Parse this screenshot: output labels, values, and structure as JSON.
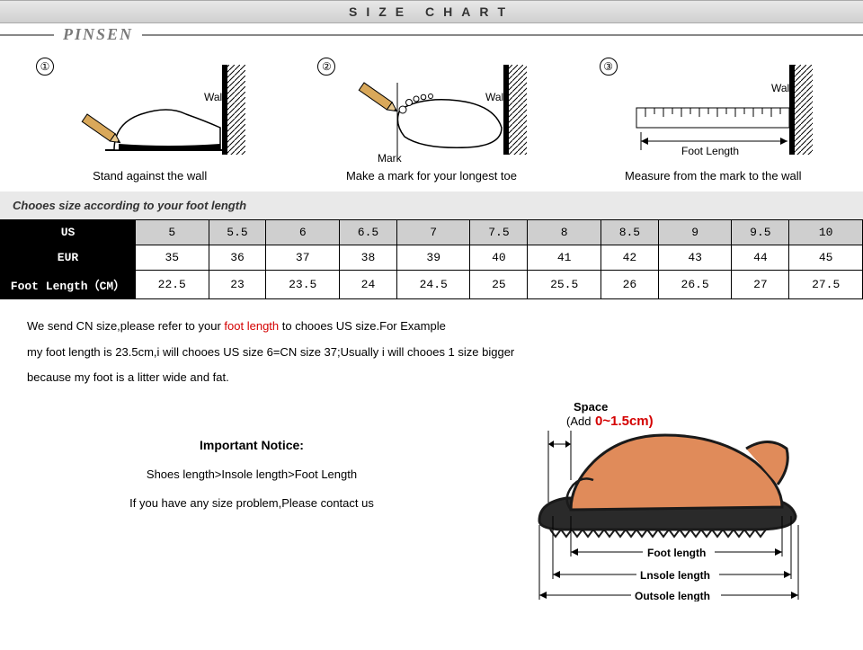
{
  "header": {
    "title": "SIZE CHART",
    "brand": "PINSEN"
  },
  "steps": [
    {
      "num": "①",
      "label_wall": "Wall",
      "caption": "Stand against the wall"
    },
    {
      "num": "②",
      "label_wall": "Wall",
      "label_mark": "Mark",
      "caption": "Make a mark for your longest toe"
    },
    {
      "num": "③",
      "label_wall": "Wall",
      "label_foot": "Foot Length",
      "caption": "Measure from the mark to the wall"
    }
  ],
  "choose_caption": "Chooes size according to your foot length",
  "table": {
    "rows": [
      {
        "label": "US",
        "header_row": true,
        "cells": [
          "5",
          "5.5",
          "6",
          "6.5",
          "7",
          "7.5",
          "8",
          "8.5",
          "9",
          "9.5",
          "10"
        ]
      },
      {
        "label": "EUR",
        "cells": [
          "35",
          "36",
          "37",
          "38",
          "39",
          "40",
          "41",
          "42",
          "43",
          "44",
          "45"
        ]
      },
      {
        "label": "Foot Length（CM）",
        "cells": [
          "22.5",
          "23",
          "23.5",
          "24",
          "24.5",
          "25",
          "25.5",
          "26",
          "26.5",
          "27",
          "27.5"
        ]
      }
    ]
  },
  "note": {
    "pre": "We send CN size,please refer to your ",
    "highlight": "foot length",
    "post": " to chooes US size.For Example",
    "line2": "my foot length is 23.5cm,i will chooes US size 6=CN size 37;Usually i will chooes 1 size bigger",
    "line3": "because my foot is a litter wide and fat."
  },
  "important": {
    "title": "Important Notice:",
    "line1": "Shoes length>Insole length>Foot Length",
    "line2": "If you have any size problem,Please contact us"
  },
  "diagram": {
    "space_label": "Space",
    "space_add": "(Add",
    "space_val": "0~1.5cm)",
    "foot": "Foot length",
    "insole": "Lnsole length",
    "outsole": "Outsole length"
  },
  "colors": {
    "foot_fill": "#e08b5a",
    "sole_fill": "#2a2a2a",
    "outline": "#1a1a1a",
    "red": "#d40000"
  }
}
